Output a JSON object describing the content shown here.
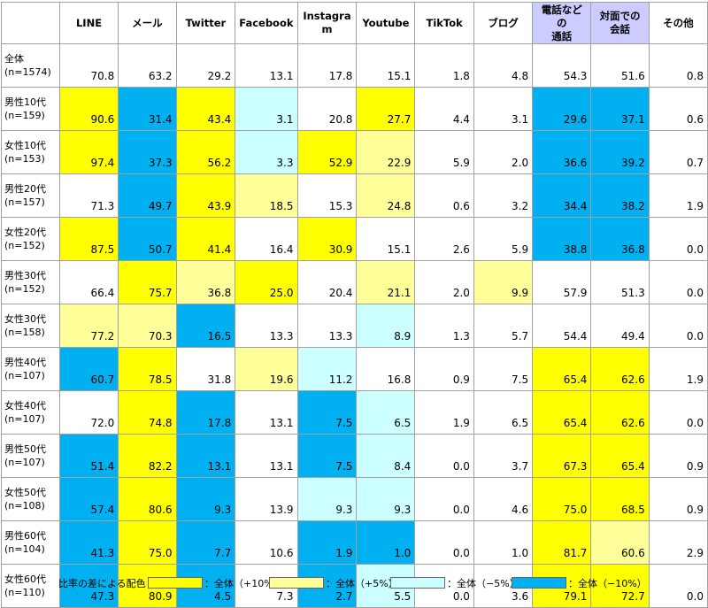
{
  "table": {
    "header": [
      "",
      "LINE",
      "メール",
      "Twitter",
      "Facebook",
      [
        "Instagra",
        "m"
      ],
      "Youtube",
      "TikTok",
      "ブログ",
      [
        "電話などの",
        "通話"
      ],
      [
        "対面での",
        "会話"
      ],
      "その他"
    ],
    "header_fills": [
      "#ffffff",
      "#ffffff",
      "#ffffff",
      "#ffffff",
      "#ffffff",
      "#ffffff",
      "#ffffff",
      "#ffffff",
      "#ffffff",
      "#ccccff",
      "#ccccff",
      "#ffffff"
    ],
    "rows": [
      {
        "label": [
          "全体",
          "(n=1574)"
        ],
        "cells": [
          "70.8",
          "63.2",
          "29.2",
          "13.1",
          "17.8",
          "15.1",
          "1.8",
          "4.8",
          "54.3",
          "51.6",
          "0.8"
        ],
        "fills": [
          "#ffffff",
          "#ffffff",
          "#ffffff",
          "#ffffff",
          "#ffffff",
          "#ffffff",
          "#ffffff",
          "#ffffff",
          "#ffffff",
          "#ffffff",
          "#ffffff"
        ]
      },
      {
        "label": [
          "男性10代",
          "(n=159)"
        ],
        "cells": [
          "90.6",
          "31.4",
          "43.4",
          "3.1",
          "20.8",
          "27.7",
          "4.4",
          "3.1",
          "29.6",
          "37.1",
          "0.6"
        ],
        "fills": [
          "#ffff00",
          "#00b0f0",
          "#ffff00",
          "#ccffff",
          "#ffffff",
          "#ffff00",
          "#ffffff",
          "#ffffff",
          "#00b0f0",
          "#00b0f0",
          "#ffffff"
        ]
      },
      {
        "label": [
          "女性10代",
          "(n=153)"
        ],
        "cells": [
          "97.4",
          "37.3",
          "56.2",
          "3.3",
          "52.9",
          "22.9",
          "5.9",
          "2.0",
          "36.6",
          "39.2",
          "0.7"
        ],
        "fills": [
          "#ffff00",
          "#00b0f0",
          "#ffff00",
          "#ccffff",
          "#ffff00",
          "#ffff99",
          "#ffffff",
          "#ffffff",
          "#00b0f0",
          "#00b0f0",
          "#ffffff"
        ]
      },
      {
        "label": [
          "男性20代",
          "(n=157)"
        ],
        "cells": [
          "71.3",
          "49.7",
          "43.9",
          "18.5",
          "15.3",
          "24.8",
          "0.6",
          "3.2",
          "34.4",
          "38.2",
          "1.9"
        ],
        "fills": [
          "#ffffff",
          "#00b0f0",
          "#ffff00",
          "#ffff99",
          "#ffffff",
          "#ffff99",
          "#ffffff",
          "#ffffff",
          "#00b0f0",
          "#00b0f0",
          "#ffffff"
        ]
      },
      {
        "label": [
          "女性20代",
          "(n=152)"
        ],
        "cells": [
          "87.5",
          "50.7",
          "41.4",
          "16.4",
          "30.9",
          "15.1",
          "2.6",
          "5.9",
          "38.8",
          "36.8",
          "0.0"
        ],
        "fills": [
          "#ffff00",
          "#00b0f0",
          "#ffff00",
          "#ffffff",
          "#ffff00",
          "#ffffff",
          "#ffffff",
          "#ffffff",
          "#00b0f0",
          "#00b0f0",
          "#ffffff"
        ]
      },
      {
        "label": [
          "男性30代",
          "(n=152)"
        ],
        "cells": [
          "66.4",
          "75.7",
          "36.8",
          "25.0",
          "20.4",
          "21.1",
          "2.0",
          "9.9",
          "57.9",
          "51.3",
          "0.0"
        ],
        "fills": [
          "#ffffff",
          "#ffff00",
          "#ffff99",
          "#ffff00",
          "#ffffff",
          "#ffff99",
          "#ffffff",
          "#ffff99",
          "#ffffff",
          "#ffffff",
          "#ffffff"
        ]
      },
      {
        "label": [
          "女性30代",
          "(n=158)"
        ],
        "cells": [
          "77.2",
          "70.3",
          "16.5",
          "13.3",
          "13.3",
          "8.9",
          "1.3",
          "5.7",
          "54.4",
          "49.4",
          "0.0"
        ],
        "fills": [
          "#ffff99",
          "#ffff99",
          "#00b0f0",
          "#ffffff",
          "#ffffff",
          "#ccffff",
          "#ffffff",
          "#ffffff",
          "#ffffff",
          "#ffffff",
          "#ffffff"
        ]
      },
      {
        "label": [
          "男性40代",
          "(n=107)"
        ],
        "cells": [
          "60.7",
          "78.5",
          "31.8",
          "19.6",
          "11.2",
          "16.8",
          "0.9",
          "7.5",
          "65.4",
          "62.6",
          "1.9"
        ],
        "fills": [
          "#00b0f0",
          "#ffff00",
          "#ffffff",
          "#ffff99",
          "#ccffff",
          "#ffffff",
          "#ffffff",
          "#ffffff",
          "#ffff00",
          "#ffff00",
          "#ffffff"
        ]
      },
      {
        "label": [
          "女性40代",
          "(n=107)"
        ],
        "cells": [
          "72.0",
          "74.8",
          "17.8",
          "13.1",
          "7.5",
          "6.5",
          "1.9",
          "6.5",
          "65.4",
          "62.6",
          "0.0"
        ],
        "fills": [
          "#ffffff",
          "#ffff00",
          "#00b0f0",
          "#ffffff",
          "#00b0f0",
          "#ccffff",
          "#ffffff",
          "#ffffff",
          "#ffff00",
          "#ffff00",
          "#ffffff"
        ]
      },
      {
        "label": [
          "男性50代",
          "(n=107)"
        ],
        "cells": [
          "51.4",
          "82.2",
          "13.1",
          "13.1",
          "7.5",
          "8.4",
          "0.0",
          "3.7",
          "67.3",
          "65.4",
          "0.9"
        ],
        "fills": [
          "#00b0f0",
          "#ffff00",
          "#00b0f0",
          "#ffffff",
          "#00b0f0",
          "#ccffff",
          "#ffffff",
          "#ffffff",
          "#ffff00",
          "#ffff00",
          "#ffffff"
        ]
      },
      {
        "label": [
          "女性50代",
          "(n=108)"
        ],
        "cells": [
          "57.4",
          "80.6",
          "9.3",
          "13.9",
          "9.3",
          "9.3",
          "0.0",
          "4.6",
          "75.0",
          "68.5",
          "0.9"
        ],
        "fills": [
          "#00b0f0",
          "#ffff00",
          "#00b0f0",
          "#ffffff",
          "#ccffff",
          "#ccffff",
          "#ffffff",
          "#ffffff",
          "#ffff00",
          "#ffff00",
          "#ffffff"
        ]
      },
      {
        "label": [
          "男性60代",
          "(n=104)"
        ],
        "cells": [
          "41.3",
          "75.0",
          "7.7",
          "10.6",
          "1.9",
          "1.0",
          "0.0",
          "1.0",
          "81.7",
          "60.6",
          "2.9"
        ],
        "fills": [
          "#00b0f0",
          "#ffff00",
          "#00b0f0",
          "#ffffff",
          "#00b0f0",
          "#00b0f0",
          "#ffffff",
          "#ffffff",
          "#ffff00",
          "#ffff99",
          "#ffffff"
        ]
      },
      {
        "label": [
          "女性60代",
          "(n=110)"
        ],
        "cells": [
          "47.3",
          "80.9",
          "4.5",
          "7.3",
          "2.7",
          "5.5",
          "0.0",
          "3.6",
          "79.1",
          "72.7",
          "0.0"
        ],
        "fills": [
          "#00b0f0",
          "#ffff00",
          "#00b0f0",
          "#ffffff",
          "#00b0f0",
          "#ccffff",
          "#ffffff",
          "#ffffff",
          "#ffff00",
          "#ffff00",
          "#ffffff"
        ]
      }
    ]
  },
  "legend": {
    "title": "比率の差による配色",
    "items": [
      {
        "color": "#ffff00",
        "label": "：全体（+10%）"
      },
      {
        "color": "#ffff99",
        "label": "：全体（+5%）"
      },
      {
        "color": "#ccffff",
        "label": "：全体（−5%）"
      },
      {
        "color": "#00b0f0",
        "label": "：全体（−10%）"
      }
    ]
  }
}
